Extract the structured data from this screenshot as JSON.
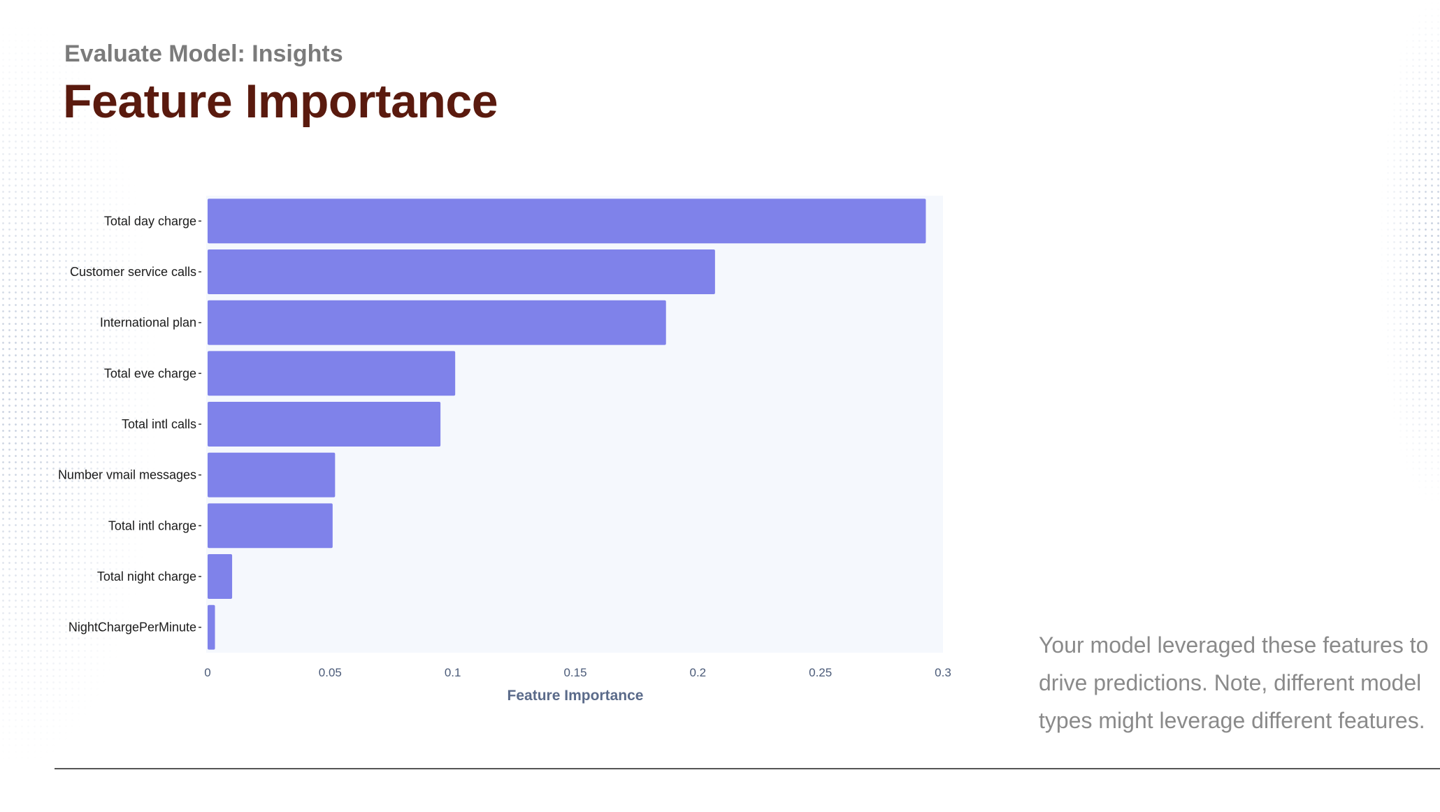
{
  "header": {
    "subtitle": "Evaluate Model: Insights",
    "title": "Feature Importance"
  },
  "chart_data": {
    "type": "bar",
    "orientation": "horizontal",
    "categories": [
      "Total day charge",
      "Customer service calls",
      "International plan",
      "Total eve charge",
      "Total intl calls",
      "Number vmail messages",
      "Total intl charge",
      "Total night charge",
      "NightChargePerMinute"
    ],
    "values": [
      0.293,
      0.207,
      0.187,
      0.101,
      0.095,
      0.052,
      0.051,
      0.01,
      0.003
    ],
    "xlabel": "Feature Importance",
    "ylabel": "",
    "xlim": [
      0,
      0.3
    ],
    "xticks": [
      "0",
      "0.05",
      "0.1",
      "0.15",
      "0.2",
      "0.25",
      "0.3"
    ],
    "bar_color": "#7f82ea",
    "plot_background": "#f5f8fd",
    "grid": false
  },
  "note": {
    "lines": [
      "Your model leveraged these features to",
      "drive predictions. Note, different model",
      "types might leverage different features."
    ]
  }
}
